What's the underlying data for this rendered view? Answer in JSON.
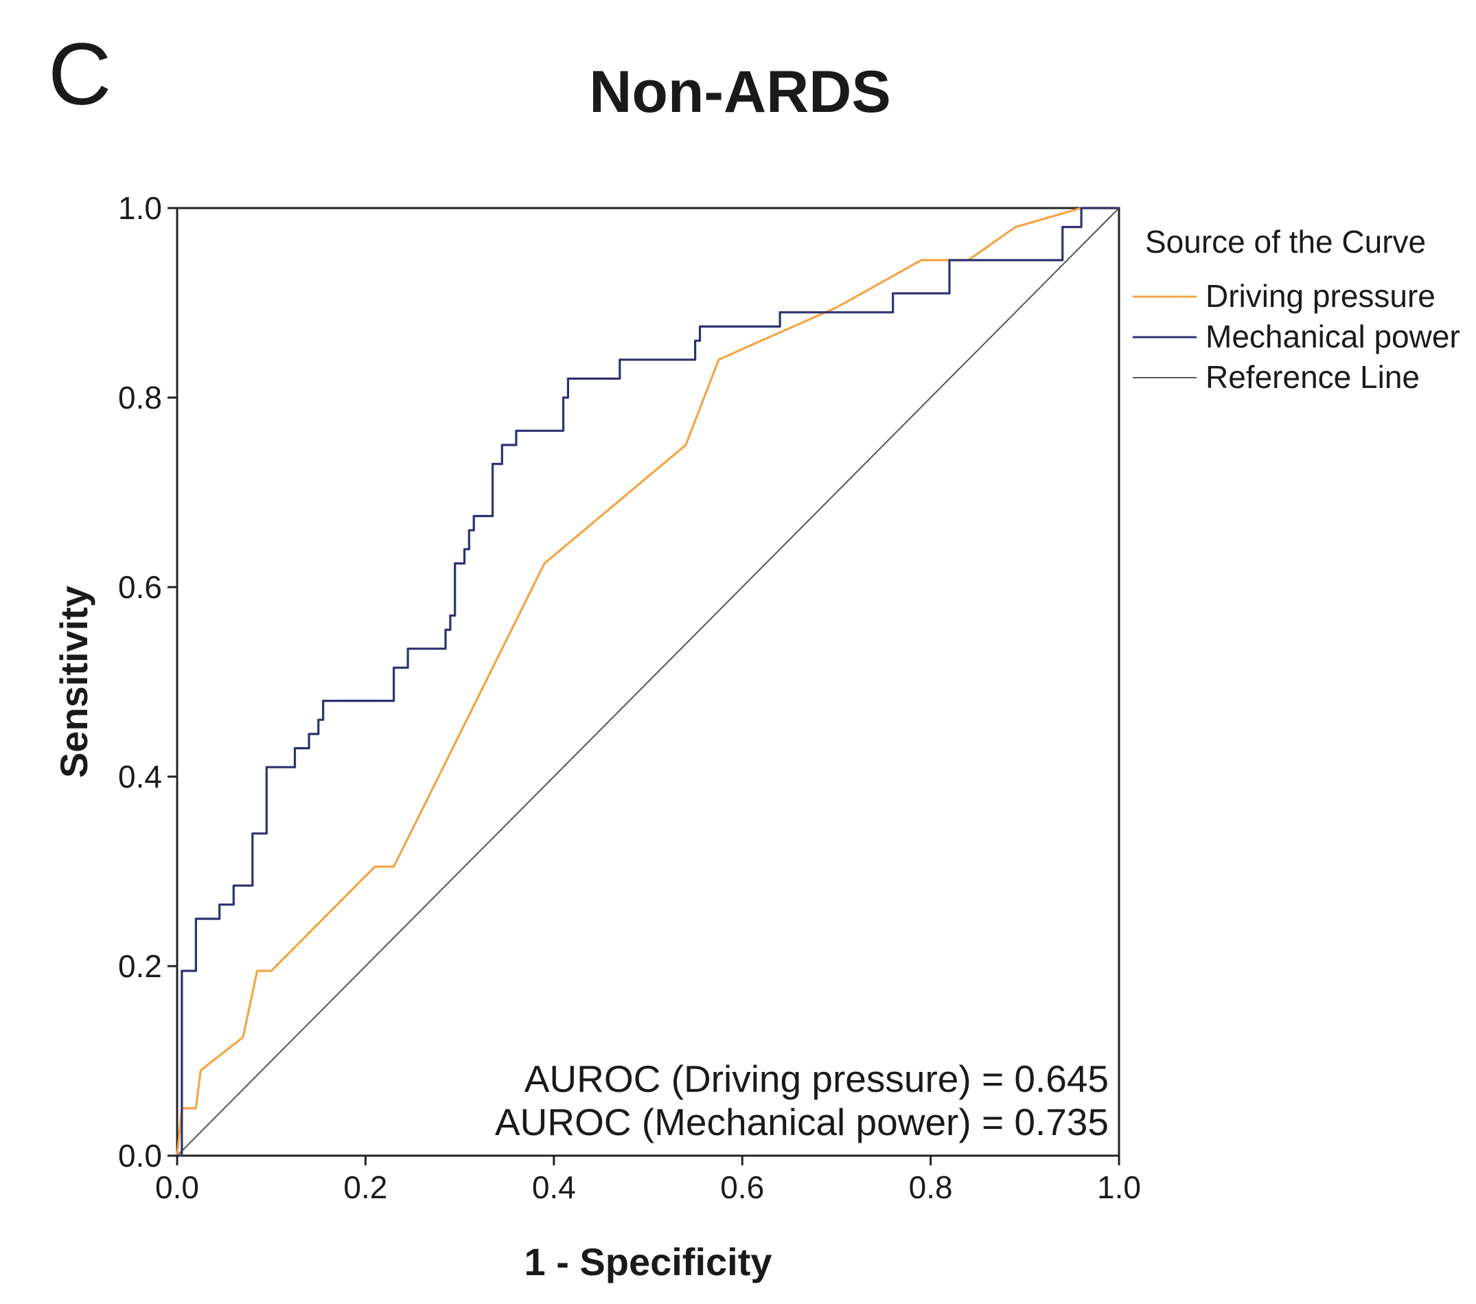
{
  "panel_label": "C",
  "chart_data": {
    "type": "line",
    "title": "Non-ARDS",
    "xlabel": "1 - Specificity",
    "ylabel": "Sensitivity",
    "xlim": [
      0,
      1
    ],
    "ylim": [
      0,
      1
    ],
    "xticks": [
      "0.0",
      "0.2",
      "0.4",
      "0.6",
      "0.8",
      "1.0"
    ],
    "yticks": [
      "0.0",
      "0.2",
      "0.4",
      "0.6",
      "0.8",
      "1.0"
    ],
    "grid": false,
    "legend": {
      "title": "Source of the Curve",
      "position": "right",
      "entries": [
        "Driving pressure",
        "Mechanical power",
        "Reference Line"
      ]
    },
    "series": [
      {
        "name": "Driving pressure",
        "color": "#f4a545",
        "step": false,
        "x": [
          0,
          0.005,
          0.01,
          0.02,
          0.025,
          0.07,
          0.085,
          0.1,
          0.21,
          0.23,
          0.39,
          0.54,
          0.575,
          0.62,
          0.7,
          0.79,
          0.84,
          0.89,
          0.96,
          1.0
        ],
        "y": [
          0,
          0.05,
          0.05,
          0.05,
          0.09,
          0.125,
          0.195,
          0.195,
          0.305,
          0.305,
          0.625,
          0.75,
          0.84,
          0.86,
          0.895,
          0.945,
          0.945,
          0.98,
          1.0,
          1.0
        ]
      },
      {
        "name": "Mechanical power",
        "color": "#2c3270",
        "step": true,
        "x": [
          0,
          0.005,
          0.02,
          0.03,
          0.045,
          0.06,
          0.08,
          0.09,
          0.095,
          0.125,
          0.14,
          0.15,
          0.155,
          0.23,
          0.245,
          0.285,
          0.29,
          0.295,
          0.305,
          0.31,
          0.315,
          0.32,
          0.335,
          0.345,
          0.36,
          0.41,
          0.415,
          0.47,
          0.55,
          0.555,
          0.64,
          0.76,
          0.82,
          0.94,
          0.96,
          1.0
        ],
        "y": [
          0,
          0.195,
          0.25,
          0.25,
          0.265,
          0.285,
          0.34,
          0.34,
          0.41,
          0.43,
          0.445,
          0.46,
          0.48,
          0.515,
          0.535,
          0.555,
          0.57,
          0.625,
          0.64,
          0.66,
          0.675,
          0.675,
          0.73,
          0.75,
          0.765,
          0.8,
          0.82,
          0.84,
          0.86,
          0.875,
          0.89,
          0.91,
          0.945,
          0.98,
          1.0,
          1.0
        ]
      },
      {
        "name": "Reference Line",
        "color": "#555555",
        "step": false,
        "x": [
          0,
          1
        ],
        "y": [
          0,
          1
        ]
      }
    ],
    "annotations": [
      "AUROC (Driving pressure) = 0.645",
      "AUROC (Mechanical power) = 0.735"
    ]
  }
}
